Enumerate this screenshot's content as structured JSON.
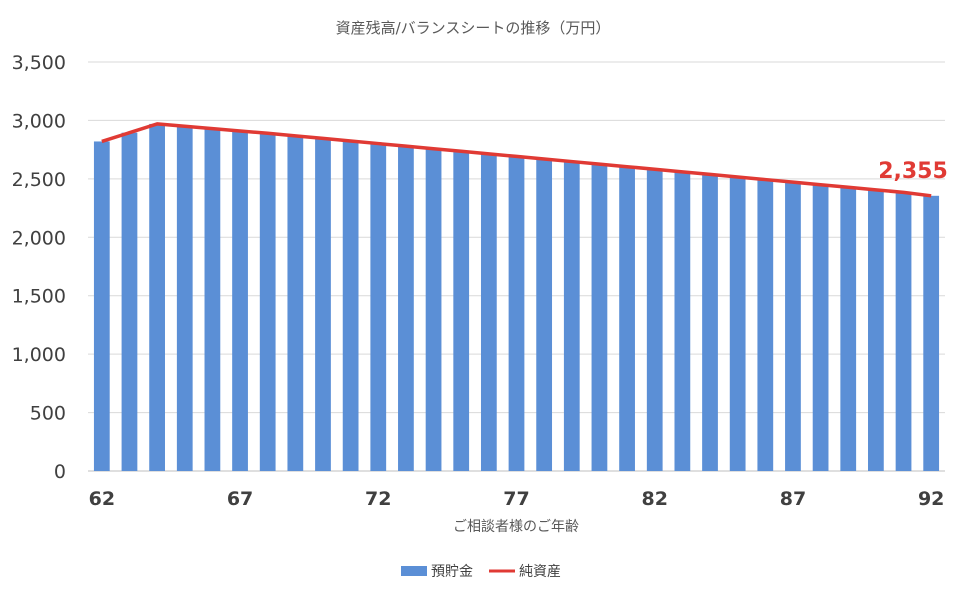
{
  "chart_data": {
    "type": "bar",
    "title": "資産残高/バランスシートの推移（万円）",
    "xlabel": "ご相談者様のご年齢",
    "ylabel": "",
    "ylim": [
      0,
      3500
    ],
    "yticks": [
      0,
      500,
      1000,
      1500,
      2000,
      2500,
      3000,
      3500
    ],
    "ytick_labels": [
      "0",
      "500",
      "1,000",
      "1,500",
      "2,000",
      "2,500",
      "3,000",
      "3,500"
    ],
    "x": [
      62,
      63,
      64,
      65,
      66,
      67,
      68,
      69,
      70,
      71,
      72,
      73,
      74,
      75,
      76,
      77,
      78,
      79,
      80,
      81,
      82,
      83,
      84,
      85,
      86,
      87,
      88,
      89,
      90,
      91,
      92
    ],
    "xtick_labels": [
      "62",
      "67",
      "72",
      "77",
      "82",
      "87",
      "92"
    ],
    "series": [
      {
        "name": "預貯金",
        "type": "bar",
        "color": "#5b8fd6",
        "values": [
          2820,
          2895,
          2970,
          2950,
          2930,
          2910,
          2890,
          2868,
          2846,
          2824,
          2802,
          2780,
          2758,
          2736,
          2714,
          2692,
          2670,
          2648,
          2626,
          2604,
          2582,
          2560,
          2538,
          2516,
          2494,
          2472,
          2450,
          2428,
          2406,
          2384,
          2355
        ]
      },
      {
        "name": "純資産",
        "type": "line",
        "color": "#e03a34",
        "values": [
          2820,
          2895,
          2970,
          2950,
          2930,
          2910,
          2890,
          2868,
          2846,
          2824,
          2802,
          2780,
          2758,
          2736,
          2714,
          2692,
          2670,
          2648,
          2626,
          2604,
          2582,
          2560,
          2538,
          2516,
          2494,
          2472,
          2450,
          2428,
          2406,
          2384,
          2355
        ]
      }
    ],
    "annotation": {
      "text": "2,355",
      "x": 92,
      "y": 2355
    },
    "grid": true,
    "legend_position": "bottom"
  }
}
